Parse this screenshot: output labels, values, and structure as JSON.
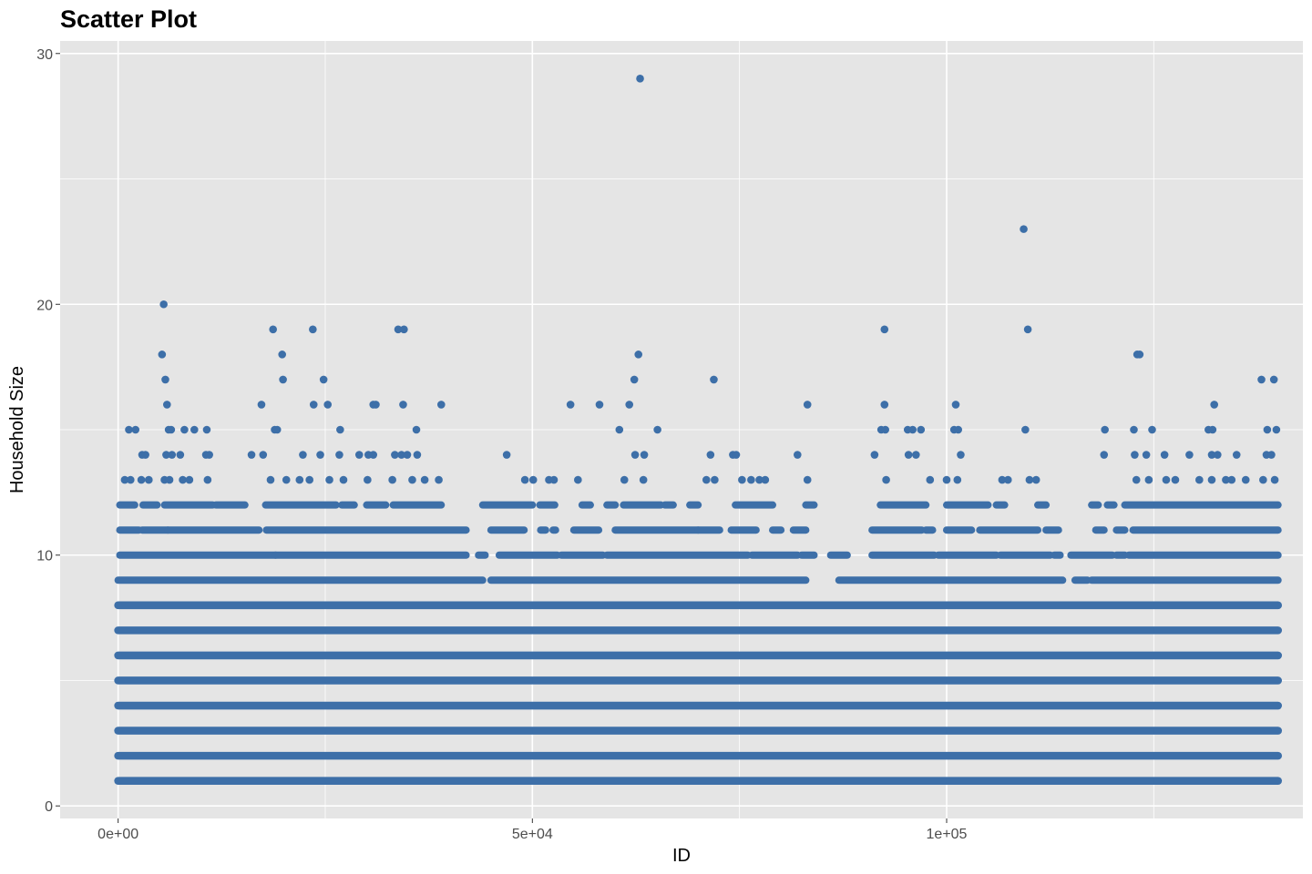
{
  "chart_data": {
    "type": "scatter",
    "title": "Scatter Plot",
    "xlabel": "ID",
    "ylabel": "Household Size",
    "xlim": [
      -7000,
      143000
    ],
    "ylim": [
      -0.5,
      30.5
    ],
    "x_ticks": [
      {
        "value": 0,
        "label": "0e+00"
      },
      {
        "value": 50000,
        "label": "5e+04"
      },
      {
        "value": 100000,
        "label": "1e+05"
      }
    ],
    "x_minor_ticks": [
      25000,
      75000,
      125000
    ],
    "y_ticks": [
      {
        "value": 0,
        "label": "0"
      },
      {
        "value": 10,
        "label": "10"
      },
      {
        "value": 20,
        "label": "20"
      },
      {
        "value": 30,
        "label": "30"
      }
    ],
    "y_minor_ticks": [
      5,
      15,
      25
    ],
    "grid": true,
    "legend": "none",
    "x_data_range": [
      0,
      140000
    ],
    "point_color": "#3D6FA8",
    "panel_color": "#E5E5E5",
    "grid_color": "#FFFFFF",
    "dense_bands": [
      {
        "y": 1,
        "x_range": [
          0,
          140000
        ]
      },
      {
        "y": 2,
        "x_range": [
          0,
          140000
        ]
      },
      {
        "y": 3,
        "x_range": [
          0,
          140000
        ]
      },
      {
        "y": 4,
        "x_range": [
          0,
          140000
        ]
      },
      {
        "y": 5,
        "x_range": [
          0,
          140000
        ]
      },
      {
        "y": 6,
        "x_range": [
          0,
          140000
        ]
      },
      {
        "y": 7,
        "x_range": [
          0,
          140000
        ]
      },
      {
        "y": 8,
        "x_range": [
          0,
          140000
        ]
      }
    ],
    "points": [
      {
        "x": 5500,
        "y": 20
      },
      {
        "x": 5300,
        "y": 18
      },
      {
        "x": 5700,
        "y": 17
      },
      {
        "x": 5900,
        "y": 16
      },
      {
        "x": 1300,
        "y": 15
      },
      {
        "x": 2100,
        "y": 15
      },
      {
        "x": 6100,
        "y": 15
      },
      {
        "x": 6400,
        "y": 15
      },
      {
        "x": 8000,
        "y": 15
      },
      {
        "x": 9200,
        "y": 15
      },
      {
        "x": 10700,
        "y": 15
      },
      {
        "x": 2900,
        "y": 14
      },
      {
        "x": 3300,
        "y": 14
      },
      {
        "x": 5800,
        "y": 14
      },
      {
        "x": 6500,
        "y": 14
      },
      {
        "x": 7500,
        "y": 14
      },
      {
        "x": 10600,
        "y": 14
      },
      {
        "x": 11000,
        "y": 14
      },
      {
        "x": 800,
        "y": 13
      },
      {
        "x": 1500,
        "y": 13
      },
      {
        "x": 2800,
        "y": 13
      },
      {
        "x": 3700,
        "y": 13
      },
      {
        "x": 5600,
        "y": 13
      },
      {
        "x": 6200,
        "y": 13
      },
      {
        "x": 7800,
        "y": 13
      },
      {
        "x": 8600,
        "y": 13
      },
      {
        "x": 10800,
        "y": 13
      },
      {
        "x": 18700,
        "y": 19
      },
      {
        "x": 23500,
        "y": 19
      },
      {
        "x": 19800,
        "y": 18
      },
      {
        "x": 19900,
        "y": 17
      },
      {
        "x": 24800,
        "y": 17
      },
      {
        "x": 17300,
        "y": 16
      },
      {
        "x": 23600,
        "y": 16
      },
      {
        "x": 25300,
        "y": 16
      },
      {
        "x": 18900,
        "y": 15
      },
      {
        "x": 19200,
        "y": 15
      },
      {
        "x": 26800,
        "y": 15
      },
      {
        "x": 16100,
        "y": 14
      },
      {
        "x": 17500,
        "y": 14
      },
      {
        "x": 22300,
        "y": 14
      },
      {
        "x": 24400,
        "y": 14
      },
      {
        "x": 26700,
        "y": 14
      },
      {
        "x": 29100,
        "y": 14
      },
      {
        "x": 18400,
        "y": 13
      },
      {
        "x": 20300,
        "y": 13
      },
      {
        "x": 21900,
        "y": 13
      },
      {
        "x": 23100,
        "y": 13
      },
      {
        "x": 25500,
        "y": 13
      },
      {
        "x": 27200,
        "y": 13
      },
      {
        "x": 33800,
        "y": 19
      },
      {
        "x": 34500,
        "y": 19
      },
      {
        "x": 30800,
        "y": 16
      },
      {
        "x": 31100,
        "y": 16
      },
      {
        "x": 34400,
        "y": 16
      },
      {
        "x": 39000,
        "y": 16
      },
      {
        "x": 36000,
        "y": 15
      },
      {
        "x": 30200,
        "y": 14
      },
      {
        "x": 30800,
        "y": 14
      },
      {
        "x": 33400,
        "y": 14
      },
      {
        "x": 34200,
        "y": 14
      },
      {
        "x": 34900,
        "y": 14
      },
      {
        "x": 36100,
        "y": 14
      },
      {
        "x": 30100,
        "y": 13
      },
      {
        "x": 33100,
        "y": 13
      },
      {
        "x": 35500,
        "y": 13
      },
      {
        "x": 37000,
        "y": 13
      },
      {
        "x": 38700,
        "y": 13
      },
      {
        "x": 63000,
        "y": 29
      },
      {
        "x": 62800,
        "y": 18
      },
      {
        "x": 62300,
        "y": 17
      },
      {
        "x": 71900,
        "y": 17
      },
      {
        "x": 54600,
        "y": 16
      },
      {
        "x": 58100,
        "y": 16
      },
      {
        "x": 61700,
        "y": 16
      },
      {
        "x": 83200,
        "y": 16
      },
      {
        "x": 60500,
        "y": 15
      },
      {
        "x": 65100,
        "y": 15
      },
      {
        "x": 46900,
        "y": 14
      },
      {
        "x": 62400,
        "y": 14
      },
      {
        "x": 63500,
        "y": 14
      },
      {
        "x": 71500,
        "y": 14
      },
      {
        "x": 74200,
        "y": 14
      },
      {
        "x": 74600,
        "y": 14
      },
      {
        "x": 82000,
        "y": 14
      },
      {
        "x": 49100,
        "y": 13
      },
      {
        "x": 50100,
        "y": 13
      },
      {
        "x": 52000,
        "y": 13
      },
      {
        "x": 52600,
        "y": 13
      },
      {
        "x": 55500,
        "y": 13
      },
      {
        "x": 61100,
        "y": 13
      },
      {
        "x": 63400,
        "y": 13
      },
      {
        "x": 71000,
        "y": 13
      },
      {
        "x": 72000,
        "y": 13
      },
      {
        "x": 75300,
        "y": 13
      },
      {
        "x": 76400,
        "y": 13
      },
      {
        "x": 77400,
        "y": 13
      },
      {
        "x": 78100,
        "y": 13
      },
      {
        "x": 83200,
        "y": 13
      },
      {
        "x": 92500,
        "y": 19
      },
      {
        "x": 109300,
        "y": 23
      },
      {
        "x": 109800,
        "y": 19
      },
      {
        "x": 92500,
        "y": 16
      },
      {
        "x": 101100,
        "y": 16
      },
      {
        "x": 123000,
        "y": 18
      },
      {
        "x": 123300,
        "y": 18
      },
      {
        "x": 92100,
        "y": 15
      },
      {
        "x": 92600,
        "y": 15
      },
      {
        "x": 95300,
        "y": 15
      },
      {
        "x": 95900,
        "y": 15
      },
      {
        "x": 96900,
        "y": 15
      },
      {
        "x": 100900,
        "y": 15
      },
      {
        "x": 101400,
        "y": 15
      },
      {
        "x": 109500,
        "y": 15
      },
      {
        "x": 119100,
        "y": 15
      },
      {
        "x": 122600,
        "y": 15
      },
      {
        "x": 124800,
        "y": 15
      },
      {
        "x": 91300,
        "y": 14
      },
      {
        "x": 95400,
        "y": 14
      },
      {
        "x": 96300,
        "y": 14
      },
      {
        "x": 101700,
        "y": 14
      },
      {
        "x": 119000,
        "y": 14
      },
      {
        "x": 122700,
        "y": 14
      },
      {
        "x": 124100,
        "y": 14
      },
      {
        "x": 126300,
        "y": 14
      },
      {
        "x": 92700,
        "y": 13
      },
      {
        "x": 98000,
        "y": 13
      },
      {
        "x": 100000,
        "y": 13
      },
      {
        "x": 101300,
        "y": 13
      },
      {
        "x": 106700,
        "y": 13
      },
      {
        "x": 107400,
        "y": 13
      },
      {
        "x": 110000,
        "y": 13
      },
      {
        "x": 110800,
        "y": 13
      },
      {
        "x": 122900,
        "y": 13
      },
      {
        "x": 124400,
        "y": 13
      },
      {
        "x": 126500,
        "y": 13
      },
      {
        "x": 132300,
        "y": 16
      },
      {
        "x": 138000,
        "y": 17
      },
      {
        "x": 139500,
        "y": 17
      },
      {
        "x": 131600,
        "y": 15
      },
      {
        "x": 132100,
        "y": 15
      },
      {
        "x": 138700,
        "y": 15
      },
      {
        "x": 139800,
        "y": 15
      },
      {
        "x": 129300,
        "y": 14
      },
      {
        "x": 132000,
        "y": 14
      },
      {
        "x": 132700,
        "y": 14
      },
      {
        "x": 135000,
        "y": 14
      },
      {
        "x": 138600,
        "y": 14
      },
      {
        "x": 139200,
        "y": 14
      },
      {
        "x": 127600,
        "y": 13
      },
      {
        "x": 130500,
        "y": 13
      },
      {
        "x": 132000,
        "y": 13
      },
      {
        "x": 133700,
        "y": 13
      },
      {
        "x": 134400,
        "y": 13
      },
      {
        "x": 136100,
        "y": 13
      },
      {
        "x": 138200,
        "y": 13
      },
      {
        "x": 139600,
        "y": 13
      }
    ],
    "sparse_rows": [
      {
        "y": 12,
        "segments": [
          [
            200,
            2000
          ],
          [
            3000,
            4700
          ],
          [
            5600,
            11400
          ],
          [
            11800,
            15300
          ],
          [
            17800,
            26300
          ],
          [
            27000,
            28500
          ],
          [
            30000,
            32300
          ],
          [
            33200,
            39000
          ],
          [
            44000,
            50000
          ],
          [
            50900,
            52700
          ],
          [
            56000,
            57000
          ],
          [
            59000,
            60000
          ],
          [
            61000,
            65500
          ],
          [
            66000,
            67000
          ],
          [
            69000,
            70000
          ],
          [
            74500,
            79000
          ],
          [
            83000,
            84000
          ],
          [
            92000,
            97500
          ],
          [
            100000,
            105000
          ],
          [
            106000,
            107000
          ],
          [
            111000,
            112000
          ],
          [
            117500,
            118300
          ],
          [
            119400,
            120200
          ],
          [
            121500,
            140000
          ]
        ]
      },
      {
        "y": 11,
        "segments": [
          [
            200,
            2500
          ],
          [
            2900,
            6000
          ],
          [
            6000,
            17000
          ],
          [
            17900,
            42000
          ],
          [
            45000,
            49000
          ],
          [
            51000,
            51600
          ],
          [
            52500,
            52800
          ],
          [
            55000,
            58000
          ],
          [
            60000,
            70000
          ],
          [
            70000,
            72600
          ],
          [
            74000,
            77000
          ],
          [
            79000,
            80000
          ],
          [
            81500,
            83000
          ],
          [
            91000,
            97000
          ],
          [
            97500,
            98300
          ],
          [
            100000,
            103000
          ],
          [
            104000,
            111000
          ],
          [
            112000,
            113500
          ],
          [
            118000,
            119000
          ],
          [
            120500,
            121500
          ],
          [
            122500,
            140000
          ]
        ]
      },
      {
        "y": 10,
        "segments": [
          [
            200,
            19000
          ],
          [
            19000,
            42000
          ],
          [
            43500,
            44300
          ],
          [
            46000,
            53000
          ],
          [
            53500,
            58500
          ],
          [
            59000,
            76000
          ],
          [
            76500,
            82000
          ],
          [
            82500,
            84000
          ],
          [
            86000,
            88000
          ],
          [
            91000,
            98500
          ],
          [
            99000,
            106000
          ],
          [
            106500,
            112500
          ],
          [
            113000,
            113700
          ],
          [
            115000,
            120000
          ],
          [
            120500,
            121500
          ],
          [
            122000,
            140000
          ]
        ]
      },
      {
        "y": 9,
        "segments": [
          [
            0,
            44000
          ],
          [
            45000,
            83000
          ],
          [
            87000,
            114000
          ],
          [
            115500,
            117000
          ],
          [
            117500,
            140000
          ]
        ]
      }
    ]
  }
}
